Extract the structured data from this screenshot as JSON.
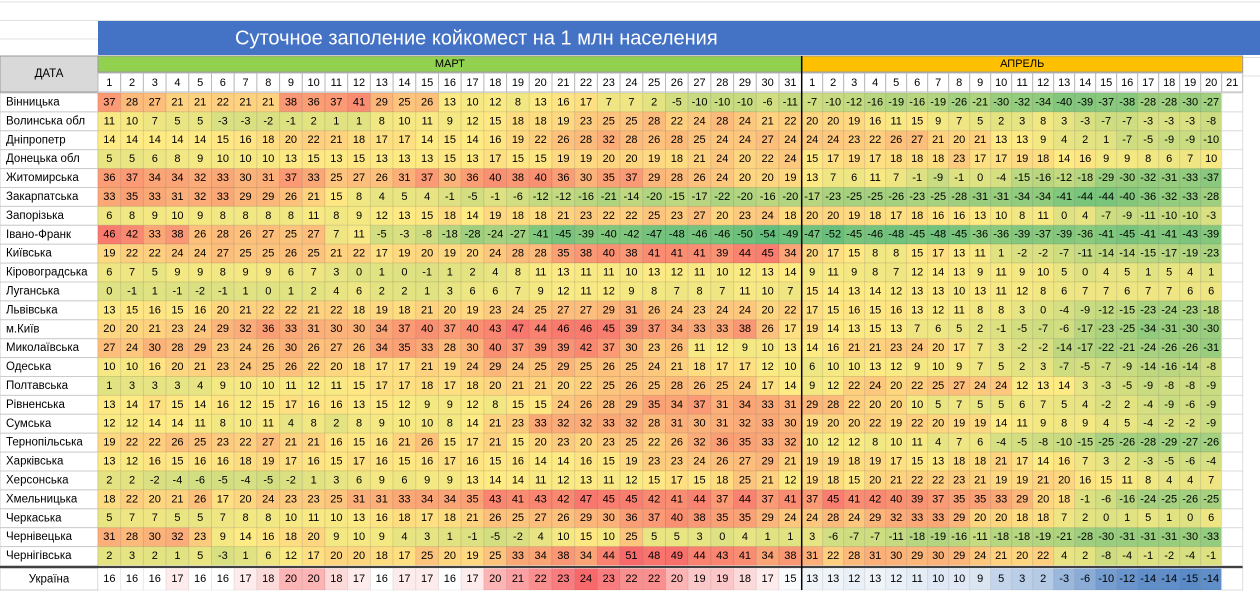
{
  "title": "Суточное  заполение койкомест на 1 млн населения",
  "corner": "ДАТА",
  "colors": {
    "high": "#f8696b",
    "mid": "#ffeb84",
    "low": "#63be7b",
    "total_high": "#f8696b",
    "total_mid": "#ffffff",
    "total_low": "#5a8ac6",
    "march": "#92d050",
    "april": "#ffc000",
    "title_bg": "#4472c4"
  },
  "months": [
    {
      "name": "МАРТ",
      "days": [
        1,
        2,
        3,
        4,
        5,
        6,
        7,
        8,
        9,
        10,
        11,
        12,
        13,
        14,
        15,
        16,
        17,
        18,
        19,
        20,
        21,
        22,
        23,
        24,
        25,
        26,
        27,
        28,
        29,
        30,
        31
      ]
    },
    {
      "name": "АПРЕЛЬ",
      "days": [
        1,
        2,
        3,
        4,
        5,
        6,
        7,
        8,
        9,
        10,
        11,
        12,
        13,
        14,
        15,
        16,
        17,
        18,
        19,
        20,
        21
      ]
    }
  ],
  "regions": [
    {
      "name": "Вінницька",
      "values": [
        37,
        28,
        27,
        21,
        21,
        22,
        21,
        21,
        38,
        36,
        37,
        41,
        29,
        25,
        26,
        13,
        10,
        12,
        8,
        13,
        16,
        17,
        7,
        7,
        2,
        -5,
        -10,
        -10,
        -10,
        -6,
        -11,
        -7,
        -10,
        -12,
        -16,
        -19,
        -16,
        -19,
        -26,
        -21,
        -30,
        -32,
        -34,
        -40,
        -39,
        -37,
        -38,
        -28,
        -28,
        -30,
        -27
      ]
    },
    {
      "name": "Волинська обл",
      "values": [
        11,
        10,
        7,
        5,
        5,
        -3,
        -3,
        -2,
        -1,
        2,
        1,
        1,
        8,
        10,
        11,
        9,
        12,
        15,
        18,
        18,
        19,
        23,
        25,
        25,
        28,
        22,
        24,
        28,
        24,
        21,
        22,
        20,
        20,
        19,
        16,
        11,
        15,
        9,
        7,
        5,
        2,
        3,
        8,
        3,
        -3,
        -7,
        -7,
        -3,
        -3,
        -3,
        -8
      ]
    },
    {
      "name": "Дніпропетр",
      "values": [
        14,
        14,
        14,
        14,
        14,
        15,
        16,
        18,
        20,
        22,
        21,
        18,
        17,
        17,
        14,
        15,
        14,
        16,
        19,
        22,
        26,
        28,
        32,
        28,
        26,
        28,
        25,
        24,
        24,
        27,
        24,
        24,
        24,
        23,
        22,
        26,
        27,
        21,
        20,
        21,
        13,
        13,
        9,
        4,
        2,
        1,
        -7,
        -5,
        -9,
        -9,
        -10
      ]
    },
    {
      "name": "Донецька обл",
      "values": [
        5,
        5,
        6,
        8,
        9,
        10,
        10,
        10,
        13,
        15,
        13,
        15,
        13,
        13,
        13,
        15,
        13,
        17,
        15,
        15,
        19,
        19,
        20,
        20,
        19,
        18,
        21,
        24,
        20,
        22,
        24,
        15,
        17,
        19,
        17,
        18,
        18,
        18,
        23,
        17,
        17,
        19,
        18,
        14,
        16,
        9,
        9,
        8,
        6,
        7,
        10
      ]
    },
    {
      "name": "Житомирська",
      "values": [
        36,
        37,
        34,
        34,
        32,
        33,
        30,
        31,
        37,
        33,
        25,
        27,
        26,
        31,
        37,
        30,
        36,
        40,
        38,
        40,
        36,
        30,
        35,
        37,
        29,
        28,
        26,
        24,
        20,
        20,
        19,
        13,
        7,
        6,
        11,
        7,
        -1,
        -9,
        -1,
        0,
        -4,
        -15,
        -16,
        -12,
        -18,
        -29,
        -30,
        -32,
        -31,
        -33,
        -37
      ]
    },
    {
      "name": "Закарпатська",
      "values": [
        33,
        35,
        33,
        31,
        32,
        33,
        29,
        29,
        26,
        21,
        15,
        8,
        4,
        5,
        4,
        -1,
        -5,
        -1,
        -6,
        -12,
        -12,
        -16,
        -21,
        -14,
        -20,
        -15,
        -17,
        -22,
        -20,
        -16,
        -20,
        -17,
        -23,
        -25,
        -25,
        -26,
        -23,
        -25,
        -28,
        -31,
        -31,
        -34,
        -34,
        -41,
        -44,
        -44,
        -40,
        -36,
        -32,
        -33,
        -28
      ]
    },
    {
      "name": "Запорізька",
      "values": [
        6,
        8,
        9,
        10,
        9,
        8,
        8,
        8,
        8,
        11,
        8,
        9,
        12,
        13,
        15,
        18,
        14,
        19,
        18,
        18,
        21,
        23,
        22,
        22,
        25,
        23,
        27,
        20,
        23,
        24,
        18,
        20,
        20,
        19,
        18,
        17,
        18,
        16,
        16,
        13,
        10,
        8,
        11,
        0,
        4,
        -7,
        -9,
        -11,
        -10,
        -10,
        -3
      ]
    },
    {
      "name": "Івано-Франк",
      "values": [
        46,
        42,
        33,
        38,
        26,
        28,
        26,
        27,
        25,
        27,
        7,
        11,
        -5,
        -3,
        -8,
        -18,
        -28,
        -24,
        -27,
        -41,
        -45,
        -39,
        -40,
        -42,
        -47,
        -48,
        -46,
        -46,
        -50,
        -54,
        -49,
        -47,
        -52,
        -45,
        -46,
        -48,
        -45,
        -48,
        -45,
        -36,
        -36,
        -39,
        -37,
        -39,
        -36,
        -41,
        -45,
        -41,
        -41,
        -43,
        -39
      ]
    },
    {
      "name": "Київська",
      "values": [
        19,
        22,
        22,
        24,
        24,
        27,
        25,
        25,
        26,
        25,
        21,
        22,
        17,
        19,
        20,
        19,
        20,
        24,
        28,
        28,
        35,
        38,
        40,
        38,
        41,
        41,
        41,
        39,
        44,
        45,
        34,
        20,
        17,
        15,
        8,
        8,
        15,
        17,
        13,
        11,
        1,
        -2,
        -2,
        -7,
        -11,
        -14,
        -14,
        -15,
        -17,
        -19,
        -23
      ]
    },
    {
      "name": "Кіровоградська",
      "values": [
        6,
        7,
        5,
        9,
        9,
        8,
        9,
        9,
        6,
        7,
        3,
        0,
        1,
        0,
        -1,
        1,
        2,
        4,
        8,
        11,
        13,
        11,
        11,
        10,
        13,
        12,
        11,
        10,
        12,
        13,
        14,
        9,
        11,
        9,
        8,
        7,
        12,
        14,
        13,
        9,
        11,
        9,
        10,
        5,
        0,
        4,
        5,
        1,
        5,
        4,
        1
      ]
    },
    {
      "name": "Луганська",
      "values": [
        0,
        -1,
        1,
        -1,
        -2,
        -1,
        1,
        0,
        1,
        2,
        4,
        6,
        2,
        2,
        1,
        3,
        6,
        6,
        7,
        9,
        12,
        11,
        12,
        9,
        8,
        7,
        8,
        7,
        11,
        10,
        7,
        15,
        14,
        13,
        14,
        12,
        13,
        13,
        10,
        13,
        11,
        12,
        8,
        6,
        7,
        7,
        6,
        7,
        7,
        6,
        6
      ]
    },
    {
      "name": "Львівська",
      "values": [
        13,
        15,
        16,
        15,
        16,
        20,
        21,
        22,
        22,
        21,
        22,
        18,
        19,
        18,
        21,
        20,
        19,
        23,
        24,
        25,
        27,
        27,
        29,
        31,
        26,
        24,
        23,
        24,
        24,
        20,
        22,
        17,
        15,
        16,
        15,
        16,
        13,
        12,
        11,
        8,
        8,
        3,
        0,
        -4,
        -9,
        -12,
        -15,
        -23,
        -24,
        -23,
        -18
      ]
    },
    {
      "name": "м.Київ",
      "values": [
        20,
        20,
        21,
        23,
        24,
        29,
        32,
        36,
        33,
        31,
        30,
        30,
        34,
        37,
        40,
        37,
        40,
        43,
        47,
        44,
        46,
        46,
        45,
        39,
        37,
        34,
        33,
        33,
        38,
        26,
        17,
        19,
        14,
        13,
        15,
        13,
        7,
        6,
        5,
        2,
        -1,
        -5,
        -7,
        -6,
        -17,
        -23,
        -25,
        -34,
        -31,
        -30,
        -30
      ]
    },
    {
      "name": "Миколаївська",
      "values": [
        27,
        24,
        30,
        28,
        29,
        23,
        24,
        26,
        30,
        26,
        27,
        26,
        34,
        35,
        33,
        28,
        30,
        40,
        37,
        39,
        39,
        42,
        37,
        30,
        23,
        26,
        11,
        12,
        9,
        10,
        13,
        14,
        16,
        21,
        21,
        23,
        24,
        20,
        17,
        7,
        3,
        -2,
        -2,
        -14,
        -17,
        -22,
        -21,
        -24,
        -26,
        -26,
        -31
      ]
    },
    {
      "name": "Одеська",
      "values": [
        10,
        10,
        16,
        20,
        21,
        23,
        24,
        25,
        26,
        22,
        20,
        18,
        17,
        17,
        21,
        19,
        24,
        29,
        24,
        25,
        29,
        25,
        26,
        25,
        24,
        21,
        18,
        17,
        17,
        12,
        10,
        6,
        10,
        10,
        13,
        12,
        9,
        10,
        9,
        7,
        5,
        2,
        3,
        -7,
        -5,
        -7,
        -9,
        -14,
        -16,
        -14,
        -8
      ]
    },
    {
      "name": "Полтавська",
      "values": [
        1,
        3,
        3,
        3,
        4,
        9,
        10,
        10,
        11,
        12,
        11,
        15,
        17,
        17,
        18,
        17,
        18,
        20,
        21,
        21,
        20,
        22,
        25,
        26,
        25,
        28,
        26,
        25,
        24,
        17,
        14,
        9,
        12,
        22,
        24,
        20,
        22,
        25,
        27,
        24,
        24,
        12,
        13,
        14,
        3,
        -3,
        -5,
        -9,
        -8,
        -8,
        -9
      ]
    },
    {
      "name": "Рівненська",
      "values": [
        13,
        14,
        17,
        15,
        14,
        16,
        12,
        15,
        17,
        16,
        16,
        13,
        15,
        12,
        9,
        9,
        12,
        8,
        15,
        15,
        24,
        26,
        28,
        29,
        35,
        34,
        37,
        31,
        34,
        33,
        31,
        29,
        28,
        22,
        20,
        20,
        10,
        5,
        7,
        5,
        5,
        6,
        7,
        5,
        4,
        -2,
        2,
        -4,
        -9,
        -6,
        -9
      ]
    },
    {
      "name": "Сумська",
      "values": [
        12,
        12,
        14,
        14,
        11,
        8,
        10,
        11,
        4,
        8,
        2,
        8,
        9,
        10,
        10,
        8,
        14,
        21,
        23,
        33,
        32,
        32,
        33,
        32,
        28,
        31,
        30,
        31,
        32,
        33,
        30,
        19,
        20,
        20,
        22,
        19,
        22,
        20,
        19,
        19,
        14,
        11,
        9,
        8,
        9,
        4,
        5,
        -4,
        -2,
        -2,
        -9
      ]
    },
    {
      "name": "Тернопільська",
      "values": [
        19,
        22,
        22,
        26,
        25,
        23,
        22,
        27,
        21,
        21,
        16,
        15,
        16,
        21,
        26,
        15,
        17,
        21,
        15,
        20,
        23,
        20,
        23,
        25,
        22,
        26,
        32,
        36,
        35,
        33,
        32,
        10,
        12,
        12,
        8,
        10,
        11,
        4,
        7,
        6,
        -4,
        -5,
        -8,
        -10,
        -15,
        -25,
        -26,
        -28,
        -29,
        -27,
        -26
      ]
    },
    {
      "name": "Харківська",
      "values": [
        13,
        12,
        16,
        15,
        16,
        16,
        18,
        19,
        17,
        16,
        15,
        17,
        16,
        15,
        16,
        17,
        16,
        15,
        16,
        14,
        14,
        16,
        15,
        19,
        23,
        23,
        24,
        26,
        27,
        29,
        21,
        19,
        19,
        18,
        19,
        17,
        15,
        13,
        18,
        18,
        21,
        17,
        14,
        16,
        7,
        3,
        2,
        -3,
        -5,
        -6,
        -4
      ]
    },
    {
      "name": "Херсонська",
      "values": [
        2,
        2,
        -2,
        -4,
        -6,
        -5,
        -4,
        -5,
        -2,
        1,
        3,
        6,
        9,
        6,
        9,
        9,
        13,
        14,
        14,
        11,
        12,
        13,
        11,
        12,
        15,
        17,
        15,
        18,
        25,
        21,
        12,
        19,
        18,
        15,
        20,
        21,
        22,
        22,
        23,
        21,
        19,
        19,
        21,
        20,
        16,
        15,
        11,
        8,
        4,
        4,
        7
      ]
    },
    {
      "name": "Хмельницька",
      "values": [
        18,
        22,
        20,
        21,
        26,
        17,
        20,
        24,
        23,
        23,
        25,
        31,
        31,
        33,
        34,
        34,
        35,
        43,
        41,
        43,
        42,
        47,
        45,
        45,
        42,
        41,
        44,
        37,
        44,
        37,
        41,
        37,
        45,
        41,
        42,
        40,
        39,
        37,
        35,
        35,
        33,
        29,
        20,
        18,
        -1,
        -6,
        -16,
        -24,
        -25,
        -26,
        -25
      ]
    },
    {
      "name": "Черкаська",
      "values": [
        5,
        7,
        7,
        5,
        5,
        7,
        8,
        8,
        10,
        11,
        10,
        13,
        16,
        18,
        17,
        18,
        21,
        26,
        25,
        27,
        26,
        29,
        30,
        36,
        37,
        40,
        38,
        35,
        35,
        29,
        24,
        24,
        28,
        24,
        29,
        32,
        33,
        33,
        29,
        20,
        20,
        18,
        18,
        7,
        2,
        0,
        1,
        5,
        1,
        0,
        6
      ]
    },
    {
      "name": "Чернівецька",
      "values": [
        31,
        28,
        30,
        32,
        23,
        9,
        14,
        16,
        18,
        20,
        9,
        10,
        9,
        4,
        3,
        1,
        -1,
        -5,
        -2,
        4,
        10,
        15,
        10,
        25,
        5,
        5,
        3,
        0,
        4,
        1,
        1,
        3,
        -6,
        -7,
        -7,
        -11,
        -18,
        -19,
        -16,
        -11,
        -18,
        -18,
        -19,
        -21,
        -28,
        -30,
        -31,
        -31,
        -31,
        -30,
        -33
      ]
    },
    {
      "name": "Чернігівська",
      "values": [
        2,
        3,
        2,
        1,
        5,
        -3,
        1,
        6,
        12,
        17,
        20,
        20,
        18,
        17,
        25,
        20,
        19,
        25,
        33,
        34,
        38,
        34,
        44,
        51,
        48,
        49,
        44,
        43,
        41,
        34,
        38,
        31,
        22,
        28,
        31,
        30,
        29,
        30,
        29,
        24,
        21,
        20,
        22,
        4,
        2,
        -8,
        -4,
        -1,
        -2,
        -4,
        -1
      ]
    }
  ],
  "total": {
    "name": "Україна",
    "values": [
      16,
      16,
      16,
      17,
      16,
      16,
      17,
      18,
      20,
      20,
      18,
      17,
      16,
      17,
      17,
      16,
      17,
      20,
      21,
      22,
      23,
      24,
      23,
      22,
      22,
      20,
      19,
      19,
      18,
      17,
      15,
      13,
      13,
      12,
      13,
      12,
      11,
      10,
      10,
      9,
      5,
      3,
      2,
      -3,
      -6,
      -10,
      -12,
      -14,
      -14,
      -15,
      -14
    ]
  }
}
